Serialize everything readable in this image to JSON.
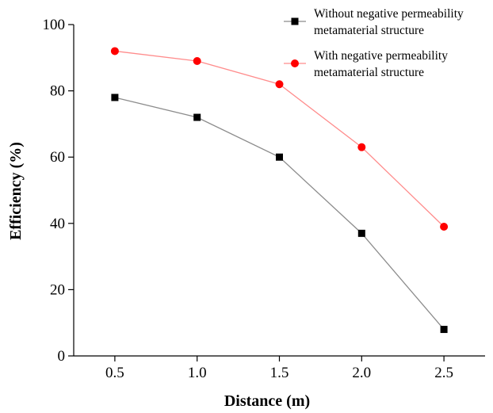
{
  "chart_data": {
    "type": "line",
    "x": [
      0.5,
      1.0,
      1.5,
      2.0,
      2.5
    ],
    "x_tick_labels": [
      "0.5",
      "1.0",
      "1.5",
      "2.0",
      "2.5"
    ],
    "y_ticks": [
      0,
      20,
      40,
      60,
      80,
      100
    ],
    "xlabel": "Distance (m)",
    "ylabel": "Efficiency (%)",
    "xlim": [
      0.25,
      2.75
    ],
    "ylim": [
      0,
      100
    ],
    "grid": false,
    "legend_position": "top-right",
    "series": [
      {
        "name": "Without negative permeability metamaterial structure",
        "name_lines": [
          "Without negative permeability",
          "metamaterial structure"
        ],
        "values": [
          78,
          72,
          60,
          37,
          8
        ],
        "marker": "square",
        "marker_color": "#000000",
        "line_color": "#8c8c8c"
      },
      {
        "name": "With negative permeability metamaterial structure",
        "name_lines": [
          "With negative permeability",
          "metamaterial structure"
        ],
        "values": [
          92,
          89,
          82,
          63,
          39
        ],
        "marker": "circle",
        "marker_color": "#ff0000",
        "line_color": "#ff8c8c"
      }
    ]
  }
}
